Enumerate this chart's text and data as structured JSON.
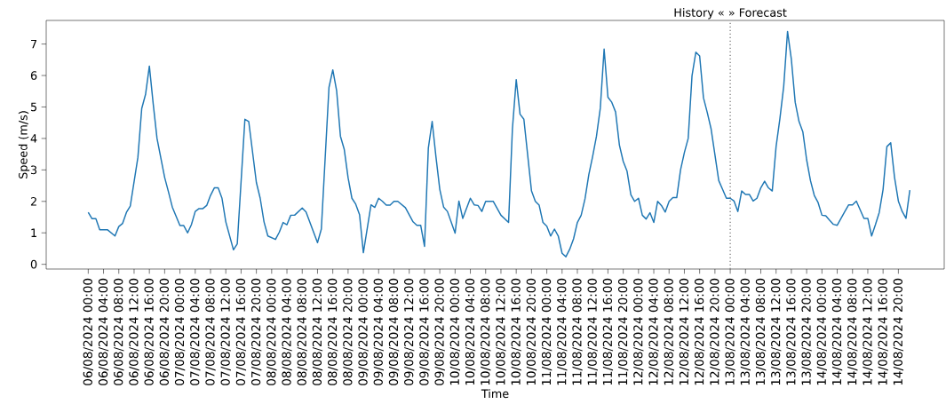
{
  "chart_data": {
    "type": "line",
    "xlabel": "Time",
    "ylabel": "Speed (m/s)",
    "line_style": "solid",
    "grid": false,
    "xlim": [
      "2024-08-05T13:00",
      "2024-08-15T08:00"
    ],
    "ylim": [
      -0.15,
      7.75
    ],
    "yticks": [
      0,
      1,
      2,
      3,
      4,
      5,
      6,
      7
    ],
    "xticks": [
      {
        "value": "2024-08-06T00:00",
        "label": "06/08/2024 00:00"
      },
      {
        "value": "2024-08-06T04:00",
        "label": "06/08/2024 04:00"
      },
      {
        "value": "2024-08-06T08:00",
        "label": "06/08/2024 08:00"
      },
      {
        "value": "2024-08-06T12:00",
        "label": "06/08/2024 12:00"
      },
      {
        "value": "2024-08-06T16:00",
        "label": "06/08/2024 16:00"
      },
      {
        "value": "2024-08-06T20:00",
        "label": "06/08/2024 20:00"
      },
      {
        "value": "2024-08-07T00:00",
        "label": "07/08/2024 00:00"
      },
      {
        "value": "2024-08-07T04:00",
        "label": "07/08/2024 04:00"
      },
      {
        "value": "2024-08-07T08:00",
        "label": "07/08/2024 08:00"
      },
      {
        "value": "2024-08-07T12:00",
        "label": "07/08/2024 12:00"
      },
      {
        "value": "2024-08-07T16:00",
        "label": "07/08/2024 16:00"
      },
      {
        "value": "2024-08-07T20:00",
        "label": "07/08/2024 20:00"
      },
      {
        "value": "2024-08-08T00:00",
        "label": "08/08/2024 00:00"
      },
      {
        "value": "2024-08-08T04:00",
        "label": "08/08/2024 04:00"
      },
      {
        "value": "2024-08-08T08:00",
        "label": "08/08/2024 08:00"
      },
      {
        "value": "2024-08-08T12:00",
        "label": "08/08/2024 12:00"
      },
      {
        "value": "2024-08-08T16:00",
        "label": "08/08/2024 16:00"
      },
      {
        "value": "2024-08-08T20:00",
        "label": "08/08/2024 20:00"
      },
      {
        "value": "2024-08-09T00:00",
        "label": "09/08/2024 00:00"
      },
      {
        "value": "2024-08-09T04:00",
        "label": "09/08/2024 04:00"
      },
      {
        "value": "2024-08-09T08:00",
        "label": "09/08/2024 08:00"
      },
      {
        "value": "2024-08-09T12:00",
        "label": "09/08/2024 12:00"
      },
      {
        "value": "2024-08-09T16:00",
        "label": "09/08/2024 16:00"
      },
      {
        "value": "2024-08-09T20:00",
        "label": "09/08/2024 20:00"
      },
      {
        "value": "2024-08-10T00:00",
        "label": "10/08/2024 00:00"
      },
      {
        "value": "2024-08-10T04:00",
        "label": "10/08/2024 04:00"
      },
      {
        "value": "2024-08-10T08:00",
        "label": "10/08/2024 08:00"
      },
      {
        "value": "2024-08-10T12:00",
        "label": "10/08/2024 12:00"
      },
      {
        "value": "2024-08-10T16:00",
        "label": "10/08/2024 16:00"
      },
      {
        "value": "2024-08-10T20:00",
        "label": "10/08/2024 20:00"
      },
      {
        "value": "2024-08-11T00:00",
        "label": "11/08/2024 00:00"
      },
      {
        "value": "2024-08-11T04:00",
        "label": "11/08/2024 04:00"
      },
      {
        "value": "2024-08-11T08:00",
        "label": "11/08/2024 08:00"
      },
      {
        "value": "2024-08-11T12:00",
        "label": "11/08/2024 12:00"
      },
      {
        "value": "2024-08-11T16:00",
        "label": "11/08/2024 16:00"
      },
      {
        "value": "2024-08-11T20:00",
        "label": "11/08/2024 20:00"
      },
      {
        "value": "2024-08-12T00:00",
        "label": "12/08/2024 00:00"
      },
      {
        "value": "2024-08-12T04:00",
        "label": "12/08/2024 04:00"
      },
      {
        "value": "2024-08-12T08:00",
        "label": "12/08/2024 08:00"
      },
      {
        "value": "2024-08-12T12:00",
        "label": "12/08/2024 12:00"
      },
      {
        "value": "2024-08-12T16:00",
        "label": "12/08/2024 16:00"
      },
      {
        "value": "2024-08-12T20:00",
        "label": "12/08/2024 20:00"
      },
      {
        "value": "2024-08-13T00:00",
        "label": "13/08/2024 00:00"
      },
      {
        "value": "2024-08-13T04:00",
        "label": "13/08/2024 04:00"
      },
      {
        "value": "2024-08-13T08:00",
        "label": "13/08/2024 08:00"
      },
      {
        "value": "2024-08-13T12:00",
        "label": "13/08/2024 12:00"
      },
      {
        "value": "2024-08-13T16:00",
        "label": "13/08/2024 16:00"
      },
      {
        "value": "2024-08-13T20:00",
        "label": "13/08/2024 20:00"
      },
      {
        "value": "2024-08-14T00:00",
        "label": "14/08/2024 00:00"
      },
      {
        "value": "2024-08-14T04:00",
        "label": "14/08/2024 04:00"
      },
      {
        "value": "2024-08-14T08:00",
        "label": "14/08/2024 08:00"
      },
      {
        "value": "2024-08-14T12:00",
        "label": "14/08/2024 12:00"
      },
      {
        "value": "2024-08-14T16:00",
        "label": "14/08/2024 16:00"
      },
      {
        "value": "2024-08-14T20:00",
        "label": "14/08/2024 20:00"
      }
    ],
    "ref_lines": [
      {
        "axis": "x",
        "value": "2024-08-13T00:00",
        "label": "History «  » Forecast",
        "color": "#808080",
        "line_style": "dotted"
      }
    ],
    "series": [
      {
        "color": "#1f77b4",
        "x": [
          "2024-08-06T00:00",
          "2024-08-06T01:00",
          "2024-08-06T02:00",
          "2024-08-06T03:00",
          "2024-08-06T05:00",
          "2024-08-06T07:00",
          "2024-08-06T08:00",
          "2024-08-06T09:00",
          "2024-08-06T10:00",
          "2024-08-06T11:00",
          "2024-08-06T13:00",
          "2024-08-06T14:00",
          "2024-08-06T15:00",
          "2024-08-06T16:00",
          "2024-08-06T17:00",
          "2024-08-06T18:00",
          "2024-08-06T20:00",
          "2024-08-06T21:00",
          "2024-08-06T22:00",
          "2024-08-07T00:00",
          "2024-08-07T01:00",
          "2024-08-07T02:00",
          "2024-08-07T03:00",
          "2024-08-07T04:00",
          "2024-08-07T05:00",
          "2024-08-07T06:00",
          "2024-08-07T07:00",
          "2024-08-07T08:00",
          "2024-08-07T09:00",
          "2024-08-07T10:00",
          "2024-08-07T11:00",
          "2024-08-07T12:00",
          "2024-08-07T14:00",
          "2024-08-07T15:00",
          "2024-08-07T17:00",
          "2024-08-07T18:00",
          "2024-08-07T20:00",
          "2024-08-07T21:00",
          "2024-08-07T22:00",
          "2024-08-07T23:00",
          "2024-08-08T01:00",
          "2024-08-08T02:00",
          "2024-08-08T03:00",
          "2024-08-08T04:00",
          "2024-08-08T05:00",
          "2024-08-08T06:00",
          "2024-08-08T08:00",
          "2024-08-08T09:00",
          "2024-08-08T12:00",
          "2024-08-08T13:00",
          "2024-08-08T15:00",
          "2024-08-08T16:00",
          "2024-08-08T17:00",
          "2024-08-08T18:00",
          "2024-08-08T19:00",
          "2024-08-08T20:00",
          "2024-08-08T21:00",
          "2024-08-08T22:00",
          "2024-08-08T23:00",
          "2024-08-09T00:00",
          "2024-08-09T02:00",
          "2024-08-09T03:00",
          "2024-08-09T04:00",
          "2024-08-09T05:00",
          "2024-08-09T06:00",
          "2024-08-09T07:00",
          "2024-08-09T08:00",
          "2024-08-09T09:00",
          "2024-08-09T11:00",
          "2024-08-09T13:00",
          "2024-08-09T14:00",
          "2024-08-09T15:00",
          "2024-08-09T16:00",
          "2024-08-09T17:00",
          "2024-08-09T18:00",
          "2024-08-09T19:00",
          "2024-08-09T20:00",
          "2024-08-09T21:00",
          "2024-08-09T22:00",
          "2024-08-10T00:00",
          "2024-08-10T01:00",
          "2024-08-10T02:00",
          "2024-08-10T04:00",
          "2024-08-10T05:00",
          "2024-08-10T06:00",
          "2024-08-10T07:00",
          "2024-08-10T08:00",
          "2024-08-10T10:00",
          "2024-08-10T12:00",
          "2024-08-10T14:00",
          "2024-08-10T15:00",
          "2024-08-10T16:00",
          "2024-08-10T17:00",
          "2024-08-10T18:00",
          "2024-08-10T20:00",
          "2024-08-10T21:00",
          "2024-08-10T22:00",
          "2024-08-10T23:00",
          "2024-08-11T00:00",
          "2024-08-11T01:00",
          "2024-08-11T02:00",
          "2024-08-11T03:00",
          "2024-08-11T04:00",
          "2024-08-11T05:00",
          "2024-08-11T06:00",
          "2024-08-11T07:00",
          "2024-08-11T08:00",
          "2024-08-11T09:00",
          "2024-08-11T10:00",
          "2024-08-11T11:00",
          "2024-08-11T12:00",
          "2024-08-11T13:00",
          "2024-08-11T14:00",
          "2024-08-11T15:00",
          "2024-08-11T16:00",
          "2024-08-11T17:00",
          "2024-08-11T18:00",
          "2024-08-11T19:00",
          "2024-08-11T20:00",
          "2024-08-11T21:00",
          "2024-08-11T22:00",
          "2024-08-11T23:00",
          "2024-08-12T00:00",
          "2024-08-12T01:00",
          "2024-08-12T02:00",
          "2024-08-12T03:00",
          "2024-08-12T04:00",
          "2024-08-12T05:00",
          "2024-08-12T06:00",
          "2024-08-12T07:00",
          "2024-08-12T08:00",
          "2024-08-12T09:00",
          "2024-08-12T10:00",
          "2024-08-12T11:00",
          "2024-08-12T12:00",
          "2024-08-12T13:00",
          "2024-08-12T14:00",
          "2024-08-12T15:00",
          "2024-08-12T16:00",
          "2024-08-12T17:00",
          "2024-08-12T18:00",
          "2024-08-12T19:00",
          "2024-08-12T21:00",
          "2024-08-12T22:00",
          "2024-08-12T23:00",
          "2024-08-13T00:00",
          "2024-08-13T01:00",
          "2024-08-13T02:00",
          "2024-08-13T03:00",
          "2024-08-13T04:00",
          "2024-08-13T05:00",
          "2024-08-13T06:00",
          "2024-08-13T07:00",
          "2024-08-13T08:00",
          "2024-08-13T09:00",
          "2024-08-13T10:00",
          "2024-08-13T11:00",
          "2024-08-13T12:00",
          "2024-08-13T13:00",
          "2024-08-13T14:00",
          "2024-08-13T15:00",
          "2024-08-13T16:00",
          "2024-08-13T17:00",
          "2024-08-13T18:00",
          "2024-08-13T19:00",
          "2024-08-13T20:00",
          "2024-08-13T21:00",
          "2024-08-13T22:00",
          "2024-08-13T23:00",
          "2024-08-14T00:00",
          "2024-08-14T01:00",
          "2024-08-14T02:00",
          "2024-08-14T03:00",
          "2024-08-14T04:00",
          "2024-08-14T06:00",
          "2024-08-14T07:00",
          "2024-08-14T08:00",
          "2024-08-14T09:00",
          "2024-08-14T11:00",
          "2024-08-14T12:00",
          "2024-08-14T13:00",
          "2024-08-14T14:00",
          "2024-08-14T15:00",
          "2024-08-14T16:00",
          "2024-08-14T17:00",
          "2024-08-14T18:00",
          "2024-08-14T19:00",
          "2024-08-14T20:00",
          "2024-08-14T21:00",
          "2024-08-14T22:00",
          "2024-08-14T23:00"
        ],
        "values": [
          1.65,
          1.45,
          1.45,
          1.1,
          1.1,
          0.9,
          1.2,
          1.3,
          1.65,
          1.85,
          3.4,
          4.95,
          5.4,
          6.3,
          5.1,
          4.0,
          2.76,
          2.3,
          1.82,
          1.23,
          1.23,
          1.0,
          1.26,
          1.68,
          1.77,
          1.77,
          1.87,
          2.19,
          2.43,
          2.43,
          2.1,
          1.35,
          0.46,
          0.65,
          4.61,
          4.54,
          2.6,
          2.1,
          1.35,
          0.9,
          0.79,
          1.02,
          1.33,
          1.26,
          1.56,
          1.56,
          1.79,
          1.66,
          0.69,
          1.12,
          5.62,
          6.18,
          5.52,
          4.07,
          3.65,
          2.75,
          2.1,
          1.91,
          1.58,
          0.37,
          1.89,
          1.81,
          2.1,
          2.0,
          1.88,
          1.88,
          2.0,
          2.0,
          1.8,
          1.35,
          1.24,
          1.24,
          0.57,
          3.69,
          4.54,
          3.41,
          2.38,
          1.82,
          1.68,
          0.99,
          2.01,
          1.46,
          2.1,
          1.89,
          1.87,
          1.68,
          2.0,
          2.0,
          1.56,
          1.33,
          4.3,
          5.87,
          4.77,
          4.61,
          2.33,
          2.0,
          1.88,
          1.33,
          1.21,
          0.9,
          1.12,
          0.9,
          0.35,
          0.24,
          0.48,
          0.81,
          1.33,
          1.56,
          2.08,
          2.85,
          3.43,
          4.07,
          4.96,
          6.84,
          5.31,
          5.15,
          4.84,
          3.79,
          3.27,
          2.96,
          2.21,
          2.0,
          2.1,
          1.56,
          1.44,
          1.64,
          1.33,
          2.0,
          1.87,
          1.66,
          2.0,
          2.12,
          2.12,
          3.0,
          3.55,
          4.0,
          5.99,
          6.74,
          6.62,
          5.29,
          4.82,
          4.3,
          2.66,
          2.38,
          2.1,
          2.1,
          2.01,
          1.68,
          2.33,
          2.22,
          2.22,
          2.01,
          2.1,
          2.43,
          2.64,
          2.43,
          2.33,
          3.74,
          4.63,
          5.66,
          7.4,
          6.51,
          5.15,
          4.54,
          4.21,
          3.32,
          2.66,
          2.19,
          1.96,
          1.56,
          1.54,
          1.4,
          1.27,
          1.24,
          1.68,
          1.89,
          1.89,
          2.01,
          1.46,
          1.46,
          0.9,
          1.26,
          1.65,
          2.38,
          3.74,
          3.86,
          2.76,
          2.01,
          1.68,
          1.46,
          2.36
        ]
      }
    ]
  }
}
